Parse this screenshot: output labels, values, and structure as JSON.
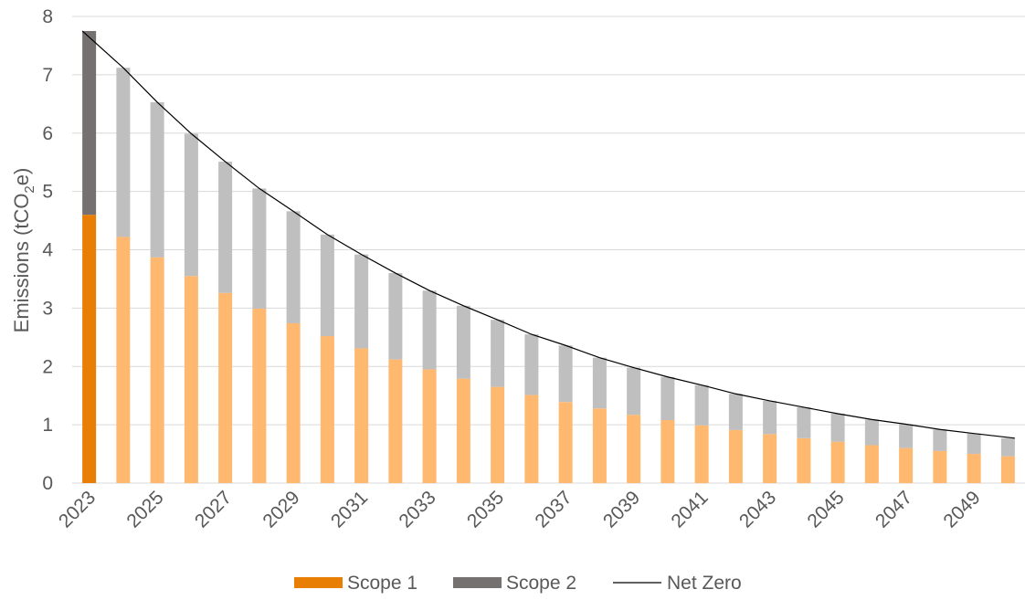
{
  "chart_data": {
    "type": "bar",
    "stacked": true,
    "title": "",
    "xlabel": "",
    "ylabel": "Emissions (tCO",
    "ylabel_subscript": "2",
    "ylabel_suffix": "e)",
    "ylim": [
      0,
      8
    ],
    "yticks": [
      "0",
      "1",
      "2",
      "3",
      "4",
      "5",
      "6",
      "7",
      "8"
    ],
    "grid": "horizontal",
    "legend_position": "bottom",
    "categories": [
      2023,
      2024,
      2025,
      2026,
      2027,
      2028,
      2029,
      2030,
      2031,
      2032,
      2033,
      2034,
      2035,
      2036,
      2037,
      2038,
      2039,
      2040,
      2041,
      2042,
      2043,
      2044,
      2045,
      2046,
      2047,
      2048,
      2049,
      2050
    ],
    "xtick_labels": [
      "2023",
      "2025",
      "2027",
      "2029",
      "2031",
      "2033",
      "2035",
      "2037",
      "2039",
      "2041",
      "2043",
      "2045",
      "2047",
      "2049"
    ],
    "series": [
      {
        "name": "Scope 1",
        "color": "#E87E04",
        "projected_color": "#FFB870",
        "values": [
          4.6,
          4.22,
          3.87,
          3.55,
          3.26,
          2.99,
          2.74,
          2.52,
          2.31,
          2.12,
          1.95,
          1.79,
          1.65,
          1.51,
          1.39,
          1.28,
          1.17,
          1.08,
          0.99,
          0.91,
          0.84,
          0.77,
          0.71,
          0.65,
          0.6,
          0.55,
          0.5,
          0.46
        ]
      },
      {
        "name": "Scope 2",
        "color": "#767171",
        "projected_color": "#BFBFBF",
        "values": [
          3.15,
          2.9,
          2.66,
          2.44,
          2.25,
          2.06,
          1.92,
          1.74,
          1.61,
          1.48,
          1.35,
          1.25,
          1.15,
          1.04,
          0.97,
          0.87,
          0.81,
          0.74,
          0.69,
          0.62,
          0.57,
          0.53,
          0.48,
          0.44,
          0.41,
          0.37,
          0.35,
          0.31
        ]
      }
    ],
    "line": {
      "name": "Net Zero",
      "color": "#000000",
      "values": [
        7.75,
        7.12,
        6.53,
        5.99,
        5.51,
        5.05,
        4.66,
        4.26,
        3.92,
        3.6,
        3.3,
        3.04,
        2.8,
        2.55,
        2.36,
        2.15,
        1.98,
        1.82,
        1.68,
        1.53,
        1.41,
        1.3,
        1.19,
        1.09,
        1.01,
        0.92,
        0.85,
        0.77
      ]
    }
  }
}
